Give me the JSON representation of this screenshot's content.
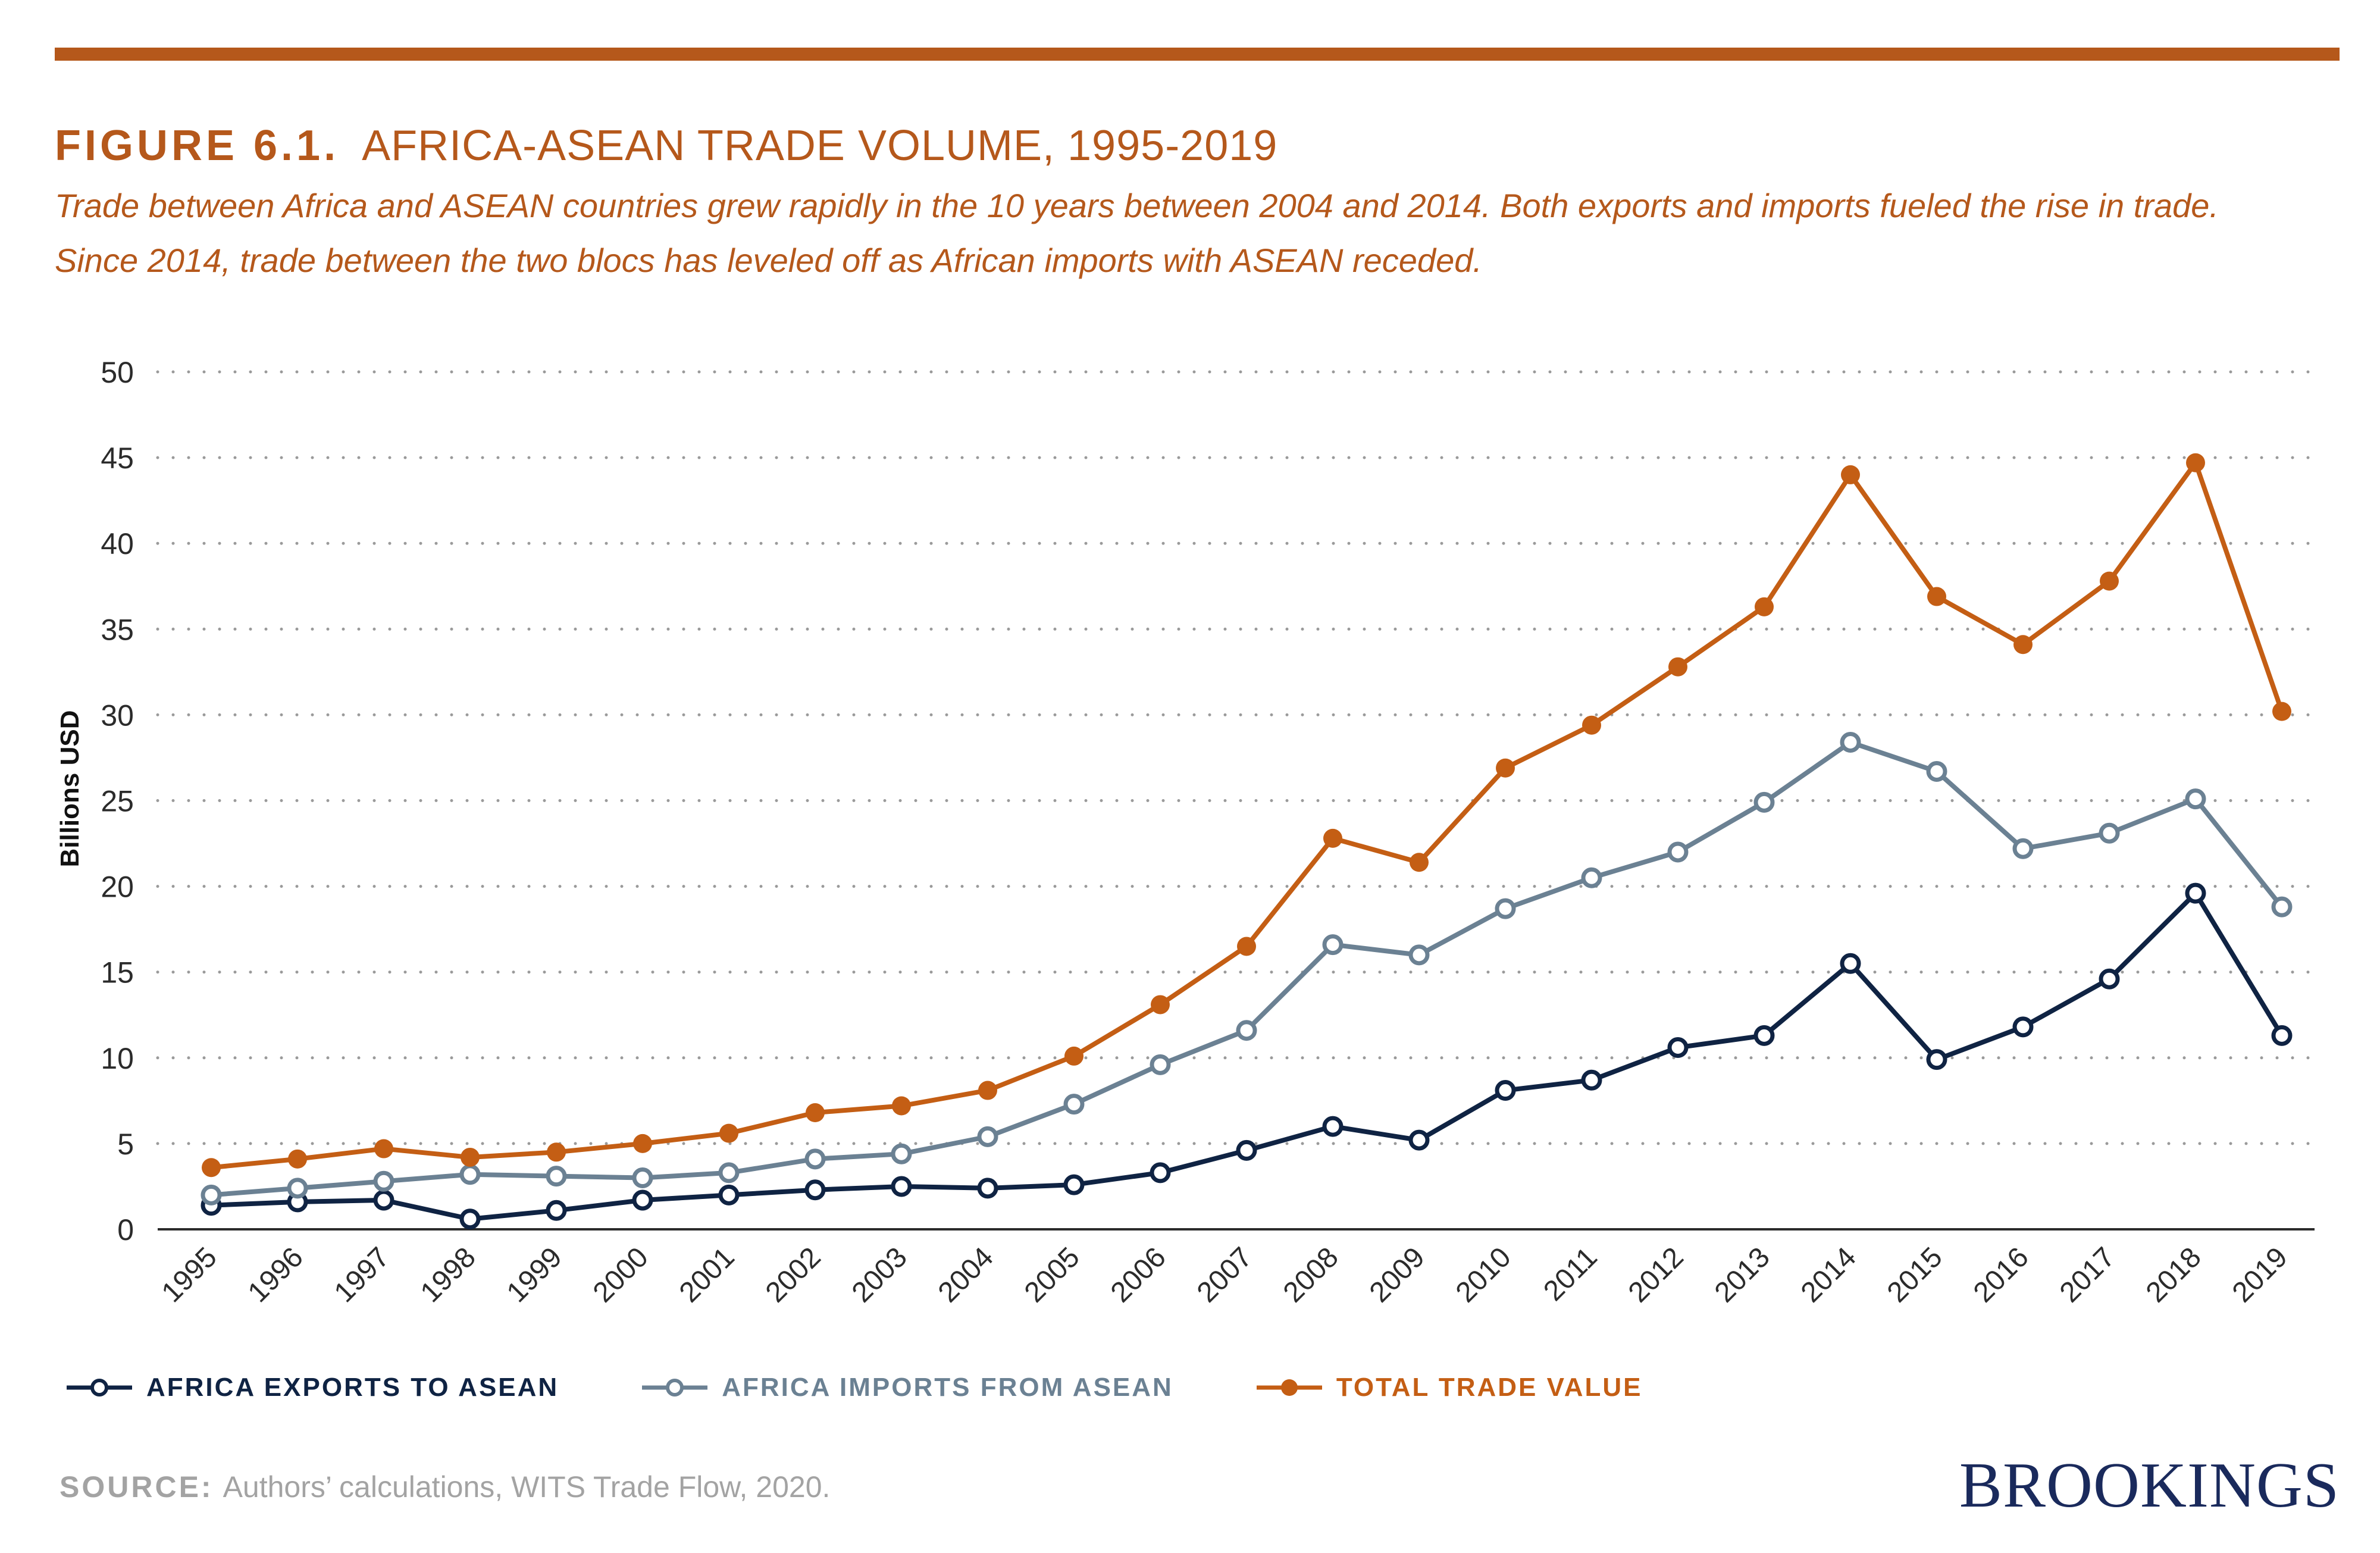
{
  "colors": {
    "accent": "#b5581b",
    "exports": "#0f2343",
    "imports": "#6b8193",
    "total": "#c45e14",
    "axis": "#2b2b2b",
    "grid": "#9a9a9a"
  },
  "header": {
    "figure_label": "FIGURE 6.1.",
    "figure_name": "AFRICA-ASEAN TRADE VOLUME, 1995-2019",
    "subtitle": "Trade between Africa and ASEAN countries grew rapidly in the 10 years between 2004 and 2014. Both exports and imports fueled the rise in trade. Since 2014, trade between the two blocs has leveled off as African imports with ASEAN receded."
  },
  "chart_data": {
    "type": "line",
    "ylabel": "Billions USD",
    "ylim": [
      0,
      50
    ],
    "yticks": [
      0,
      5,
      10,
      15,
      20,
      25,
      30,
      35,
      40,
      45,
      50
    ],
    "grid": "horizontal dotted",
    "legend_position": "bottom",
    "categories": [
      "1995",
      "1996",
      "1997",
      "1998",
      "1999",
      "2000",
      "2001",
      "2002",
      "2003",
      "2004",
      "2005",
      "2006",
      "2007",
      "2008",
      "2009",
      "2010",
      "2011",
      "2012",
      "2013",
      "2014",
      "2015",
      "2016",
      "2017",
      "2018",
      "2019"
    ],
    "series": [
      {
        "name": "AFRICA EXPORTS TO ASEAN",
        "color": "#0f2343",
        "marker": "hollow",
        "values": [
          1.4,
          1.6,
          1.7,
          0.6,
          1.1,
          1.7,
          2.0,
          2.3,
          2.5,
          2.4,
          2.6,
          3.3,
          4.6,
          6.0,
          5.2,
          8.1,
          8.7,
          10.6,
          11.3,
          15.5,
          9.9,
          11.8,
          14.6,
          19.6,
          11.3
        ]
      },
      {
        "name": "AFRICA IMPORTS FROM ASEAN",
        "color": "#6b8193",
        "marker": "hollow",
        "values": [
          2.0,
          2.4,
          2.8,
          3.2,
          3.1,
          3.0,
          3.3,
          4.1,
          4.4,
          5.4,
          7.3,
          9.6,
          11.6,
          16.6,
          16.0,
          18.7,
          20.5,
          22.0,
          24.9,
          28.4,
          26.7,
          22.2,
          23.1,
          25.1,
          18.8
        ]
      },
      {
        "name": "TOTAL TRADE VALUE",
        "color": "#c45e14",
        "marker": "filled",
        "values": [
          3.6,
          4.1,
          4.7,
          4.2,
          4.5,
          5.0,
          5.6,
          6.8,
          7.2,
          8.1,
          10.1,
          13.1,
          16.5,
          22.8,
          21.4,
          26.9,
          29.4,
          32.8,
          36.3,
          44.0,
          36.9,
          34.1,
          37.8,
          44.7,
          30.2
        ]
      }
    ]
  },
  "source": {
    "label": "SOURCE:",
    "text": "Authors’ calculations, WITS Trade Flow, 2020."
  },
  "brand": "BROOKINGS"
}
